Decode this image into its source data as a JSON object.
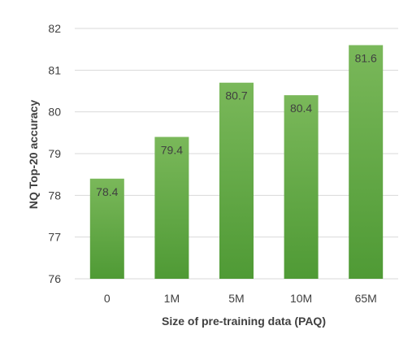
{
  "chart_data": {
    "type": "bar",
    "categories": [
      "0",
      "1M",
      "5M",
      "10M",
      "65M"
    ],
    "values": [
      78.4,
      79.4,
      80.7,
      80.4,
      81.6
    ],
    "data_labels": [
      "78.4",
      "79.4",
      "80.7",
      "80.4",
      "81.6"
    ],
    "xlabel": "Size of pre-training data (PAQ)",
    "ylabel": "NQ Top-20 accuracy",
    "ylim": [
      76,
      82
    ],
    "yticks": [
      "76",
      "77",
      "78",
      "79",
      "80",
      "81",
      "82"
    ],
    "grid": true,
    "legend": "none",
    "colors": {
      "bar_top": "#7ab85a",
      "bar_bottom": "#4f9a35",
      "grid": "#d9d9d9",
      "text": "#404040"
    }
  }
}
